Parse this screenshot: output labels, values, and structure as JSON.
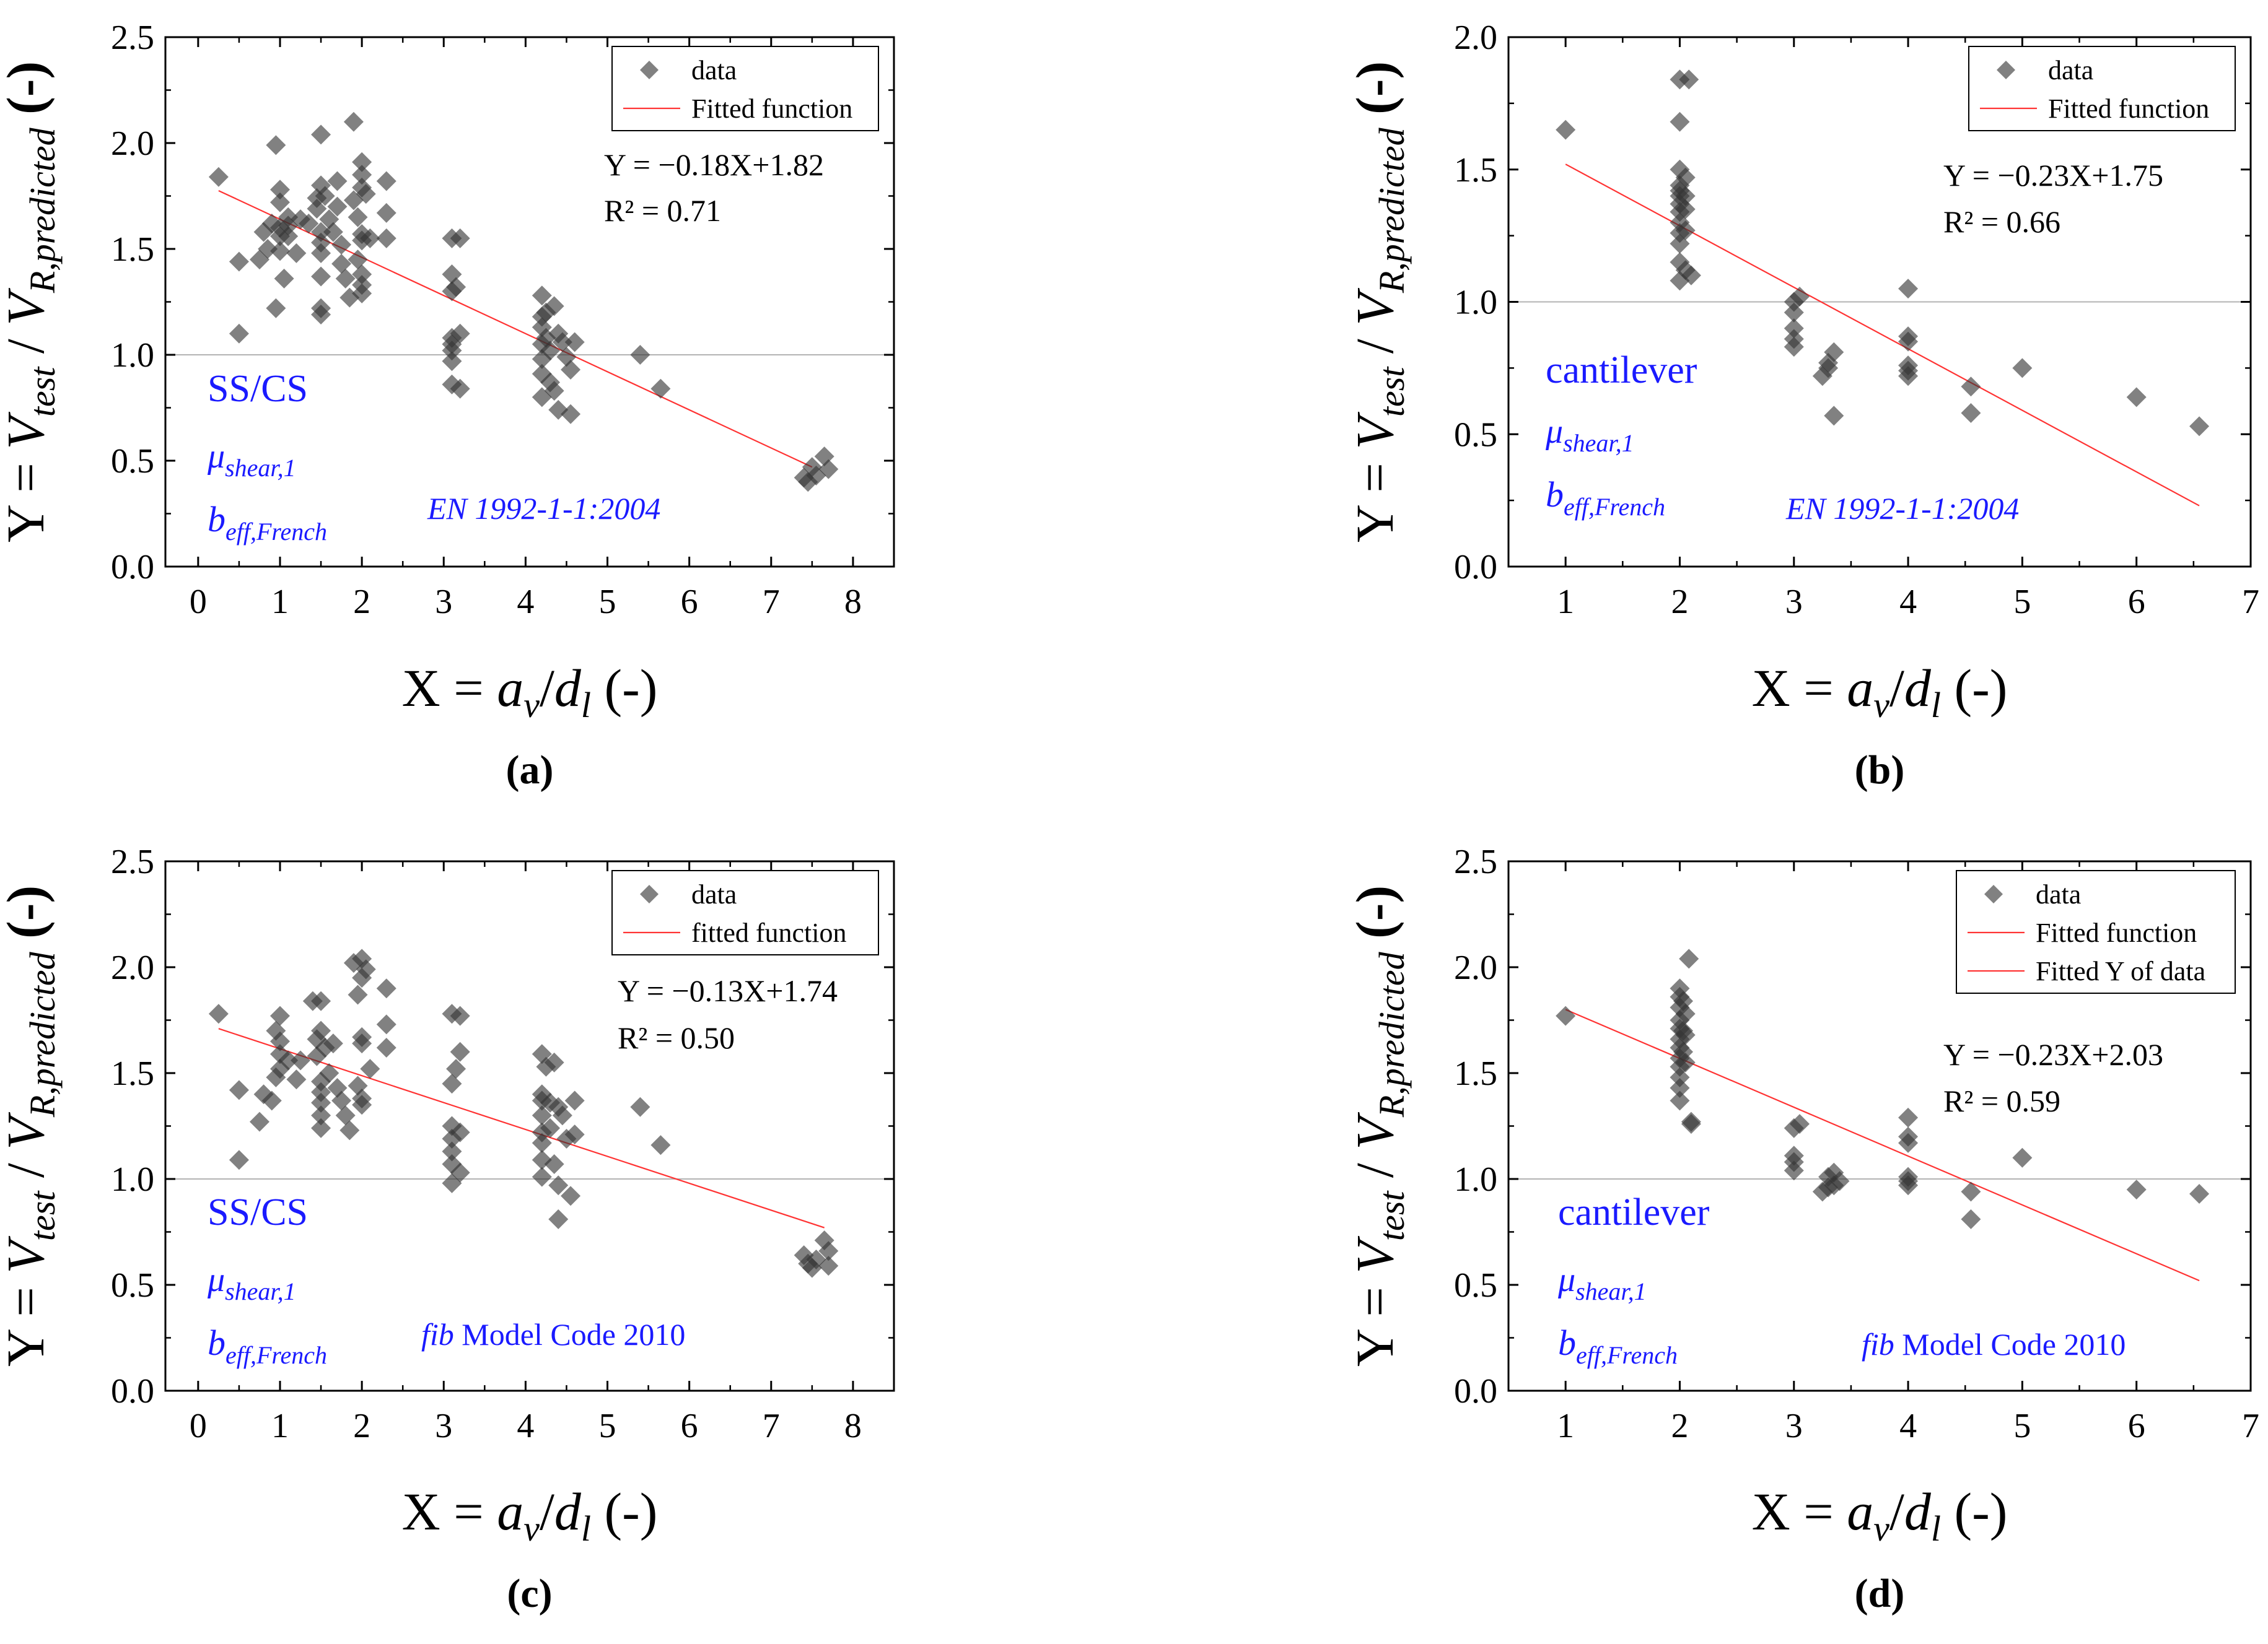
{
  "figure": {
    "colors": {
      "marker": "#333333",
      "fit_line": "#ff3333",
      "reference_line": "#b3b3b3",
      "annotation": "#1a1aff",
      "axis": "#000000"
    },
    "ylabel": {
      "prefix": "Y = ",
      "v1": "V",
      "v1_sub": "test",
      "slash": " / ",
      "v2": "V",
      "v2_sub": "R,predicted",
      "suffix": " (-)"
    },
    "xlabel": {
      "prefix": "X = ",
      "a": "a",
      "a_sub": "v",
      "slash": "/",
      "d": "d",
      "d_sub": "l",
      "suffix": " (-)"
    },
    "mu_symbol": "μ",
    "mu_sub": "shear,1",
    "b_symbol": "b",
    "b_sub": "eff,French"
  },
  "chart_data": [
    {
      "panel_label": "(a)",
      "type": "scatter",
      "xlim": [
        -0.4,
        8.5
      ],
      "ylim": [
        0,
        2.5
      ],
      "xticks": [
        "0",
        "1",
        "2",
        "3",
        "4",
        "5",
        "6",
        "7",
        "8"
      ],
      "yticks": [
        "0.0",
        "0.5",
        "1.0",
        "1.5",
        "2.0",
        "2.5"
      ],
      "legend": [
        "data",
        "Fitted function"
      ],
      "equation": "Y = −0.18X+1.82",
      "r2": "R² = 0.71",
      "group_label": "SS/CS",
      "code_label": {
        "italic": "EN 1992-1-1:2004",
        "normal": ""
      },
      "reference_y": 1.0,
      "fit": {
        "x": [
          0.25,
          7.5
        ],
        "y": [
          1.775,
          0.47
        ]
      },
      "points": [
        [
          0.25,
          1.84
        ],
        [
          0.5,
          1.1
        ],
        [
          0.5,
          1.44
        ],
        [
          0.75,
          1.45
        ],
        [
          0.8,
          1.58
        ],
        [
          0.85,
          1.5
        ],
        [
          0.9,
          1.62
        ],
        [
          0.95,
          1.99
        ],
        [
          0.95,
          1.22
        ],
        [
          1.0,
          1.78
        ],
        [
          1.0,
          1.72
        ],
        [
          1.0,
          1.6
        ],
        [
          1.0,
          1.56
        ],
        [
          1.0,
          1.49
        ],
        [
          1.05,
          1.36
        ],
        [
          1.1,
          1.65
        ],
        [
          1.1,
          1.61
        ],
        [
          1.1,
          1.56
        ],
        [
          1.2,
          1.48
        ],
        [
          1.25,
          1.64
        ],
        [
          1.35,
          1.62
        ],
        [
          1.45,
          1.74
        ],
        [
          1.45,
          1.69
        ],
        [
          1.5,
          2.04
        ],
        [
          1.5,
          1.8
        ],
        [
          1.5,
          1.58
        ],
        [
          1.5,
          1.53
        ],
        [
          1.5,
          1.48
        ],
        [
          1.5,
          1.37
        ],
        [
          1.5,
          1.22
        ],
        [
          1.5,
          1.19
        ],
        [
          1.55,
          1.75
        ],
        [
          1.6,
          1.64
        ],
        [
          1.65,
          1.58
        ],
        [
          1.7,
          1.82
        ],
        [
          1.7,
          1.7
        ],
        [
          1.75,
          1.52
        ],
        [
          1.75,
          1.43
        ],
        [
          1.8,
          1.36
        ],
        [
          1.85,
          1.27
        ],
        [
          1.9,
          2.1
        ],
        [
          1.9,
          1.73
        ],
        [
          1.95,
          1.65
        ],
        [
          1.95,
          1.45
        ],
        [
          2.0,
          1.91
        ],
        [
          2.0,
          1.85
        ],
        [
          2.0,
          1.79
        ],
        [
          2.0,
          1.57
        ],
        [
          2.0,
          1.54
        ],
        [
          2.0,
          1.38
        ],
        [
          2.0,
          1.33
        ],
        [
          2.0,
          1.29
        ],
        [
          2.05,
          1.76
        ],
        [
          2.1,
          1.55
        ],
        [
          2.3,
          1.82
        ],
        [
          2.3,
          1.67
        ],
        [
          2.3,
          1.55
        ],
        [
          3.1,
          1.55
        ],
        [
          3.1,
          1.38
        ],
        [
          3.1,
          1.3
        ],
        [
          3.1,
          1.08
        ],
        [
          3.1,
          1.05
        ],
        [
          3.1,
          1.02
        ],
        [
          3.1,
          0.97
        ],
        [
          3.1,
          0.86
        ],
        [
          3.15,
          1.32
        ],
        [
          3.2,
          1.55
        ],
        [
          3.2,
          1.1
        ],
        [
          3.2,
          0.84
        ],
        [
          4.2,
          1.28
        ],
        [
          4.2,
          1.18
        ],
        [
          4.2,
          1.13
        ],
        [
          4.2,
          1.05
        ],
        [
          4.2,
          0.98
        ],
        [
          4.2,
          0.91
        ],
        [
          4.2,
          0.8
        ],
        [
          4.25,
          1.2
        ],
        [
          4.25,
          1.08
        ],
        [
          4.3,
          1.02
        ],
        [
          4.3,
          0.87
        ],
        [
          4.35,
          1.23
        ],
        [
          4.35,
          0.83
        ],
        [
          4.4,
          1.1
        ],
        [
          4.4,
          0.74
        ],
        [
          4.45,
          1.06
        ],
        [
          4.5,
          0.99
        ],
        [
          4.55,
          0.93
        ],
        [
          4.55,
          0.72
        ],
        [
          4.6,
          1.06
        ],
        [
          5.4,
          1.0
        ],
        [
          5.65,
          0.84
        ],
        [
          7.4,
          0.42
        ],
        [
          7.45,
          0.4
        ],
        [
          7.5,
          0.47
        ],
        [
          7.55,
          0.43
        ],
        [
          7.65,
          0.52
        ],
        [
          7.7,
          0.46
        ]
      ]
    },
    {
      "panel_label": "(b)",
      "type": "scatter",
      "xlim": [
        0.5,
        7.0
      ],
      "ylim": [
        0,
        2.0
      ],
      "xticks": [
        "1",
        "2",
        "3",
        "4",
        "5",
        "6",
        "7"
      ],
      "yticks": [
        "0.0",
        "0.5",
        "1.0",
        "1.5",
        "2.0"
      ],
      "legend": [
        "data",
        "Fitted function"
      ],
      "equation": "Y = −0.23X+1.75",
      "r2": "R² = 0.66",
      "group_label": "cantilever",
      "code_label": {
        "italic": "EN 1992-1-1:2004",
        "normal": ""
      },
      "reference_y": 1.0,
      "fit": {
        "x": [
          1.0,
          6.55
        ],
        "y": [
          1.52,
          0.23
        ]
      },
      "points": [
        [
          1.0,
          1.65
        ],
        [
          2.0,
          1.84
        ],
        [
          2.0,
          1.68
        ],
        [
          2.0,
          1.5
        ],
        [
          2.0,
          1.44
        ],
        [
          2.0,
          1.42
        ],
        [
          2.0,
          1.4
        ],
        [
          2.0,
          1.37
        ],
        [
          2.0,
          1.34
        ],
        [
          2.0,
          1.3
        ],
        [
          2.0,
          1.26
        ],
        [
          2.0,
          1.22
        ],
        [
          2.0,
          1.15
        ],
        [
          2.0,
          1.08
        ],
        [
          2.05,
          1.47
        ],
        [
          2.05,
          1.4
        ],
        [
          2.05,
          1.35
        ],
        [
          2.05,
          1.27
        ],
        [
          2.05,
          1.12
        ],
        [
          2.08,
          1.84
        ],
        [
          2.1,
          1.1
        ],
        [
          3.0,
          1.0
        ],
        [
          3.0,
          0.96
        ],
        [
          3.0,
          0.9
        ],
        [
          3.0,
          0.86
        ],
        [
          3.0,
          0.83
        ],
        [
          3.05,
          1.02
        ],
        [
          3.25,
          0.72
        ],
        [
          3.3,
          0.77
        ],
        [
          3.3,
          0.75
        ],
        [
          3.35,
          0.81
        ],
        [
          3.35,
          0.57
        ],
        [
          4.0,
          1.05
        ],
        [
          4.0,
          0.87
        ],
        [
          4.0,
          0.85
        ],
        [
          4.0,
          0.76
        ],
        [
          4.0,
          0.74
        ],
        [
          4.0,
          0.72
        ],
        [
          4.55,
          0.68
        ],
        [
          4.55,
          0.58
        ],
        [
          5.0,
          0.75
        ],
        [
          6.0,
          0.64
        ],
        [
          6.55,
          0.53
        ]
      ]
    },
    {
      "panel_label": "(c)",
      "type": "scatter",
      "xlim": [
        -0.4,
        8.5
      ],
      "ylim": [
        0,
        2.5
      ],
      "xticks": [
        "0",
        "1",
        "2",
        "3",
        "4",
        "5",
        "6",
        "7",
        "8"
      ],
      "yticks": [
        "0.0",
        "0.5",
        "1.0",
        "1.5",
        "2.0",
        "2.5"
      ],
      "legend": [
        "data",
        "fitted function"
      ],
      "equation": "Y = −0.13X+1.74",
      "r2": "R² = 0.50",
      "group_label": "SS/CS",
      "code_label": {
        "italic": "fib",
        "normal": " Model Code 2010"
      },
      "reference_y": 1.0,
      "fit": {
        "x": [
          0.25,
          7.65
        ],
        "y": [
          1.71,
          0.77
        ]
      },
      "points": [
        [
          0.25,
          1.78
        ],
        [
          0.5,
          1.09
        ],
        [
          0.5,
          1.42
        ],
        [
          0.75,
          1.27
        ],
        [
          0.8,
          1.4
        ],
        [
          0.9,
          1.37
        ],
        [
          0.95,
          1.7
        ],
        [
          0.95,
          1.48
        ],
        [
          1.0,
          1.77
        ],
        [
          1.0,
          1.65
        ],
        [
          1.0,
          1.59
        ],
        [
          1.0,
          1.52
        ],
        [
          1.1,
          1.56
        ],
        [
          1.2,
          1.47
        ],
        [
          1.25,
          1.56
        ],
        [
          1.4,
          1.84
        ],
        [
          1.45,
          1.66
        ],
        [
          1.45,
          1.58
        ],
        [
          1.5,
          1.84
        ],
        [
          1.5,
          1.7
        ],
        [
          1.5,
          1.46
        ],
        [
          1.5,
          1.41
        ],
        [
          1.5,
          1.36
        ],
        [
          1.5,
          1.3
        ],
        [
          1.5,
          1.24
        ],
        [
          1.55,
          1.62
        ],
        [
          1.6,
          1.5
        ],
        [
          1.65,
          1.64
        ],
        [
          1.7,
          1.43
        ],
        [
          1.75,
          1.37
        ],
        [
          1.8,
          1.3
        ],
        [
          1.85,
          1.23
        ],
        [
          1.9,
          2.02
        ],
        [
          1.95,
          1.87
        ],
        [
          1.95,
          1.44
        ],
        [
          2.0,
          2.04
        ],
        [
          2.0,
          1.95
        ],
        [
          2.0,
          1.67
        ],
        [
          2.0,
          1.64
        ],
        [
          2.0,
          1.38
        ],
        [
          2.0,
          1.35
        ],
        [
          2.05,
          1.99
        ],
        [
          2.1,
          1.52
        ],
        [
          2.3,
          1.9
        ],
        [
          2.3,
          1.73
        ],
        [
          2.3,
          1.62
        ],
        [
          3.1,
          1.78
        ],
        [
          3.1,
          1.45
        ],
        [
          3.1,
          1.25
        ],
        [
          3.1,
          1.19
        ],
        [
          3.1,
          1.13
        ],
        [
          3.1,
          1.07
        ],
        [
          3.1,
          0.98
        ],
        [
          3.15,
          1.52
        ],
        [
          3.2,
          1.77
        ],
        [
          3.2,
          1.6
        ],
        [
          3.2,
          1.22
        ],
        [
          3.2,
          1.03
        ],
        [
          4.2,
          1.59
        ],
        [
          4.2,
          1.4
        ],
        [
          4.2,
          1.37
        ],
        [
          4.2,
          1.3
        ],
        [
          4.2,
          1.22
        ],
        [
          4.2,
          1.17
        ],
        [
          4.2,
          1.09
        ],
        [
          4.2,
          1.01
        ],
        [
          4.25,
          1.53
        ],
        [
          4.3,
          1.36
        ],
        [
          4.3,
          1.24
        ],
        [
          4.35,
          1.55
        ],
        [
          4.35,
          1.07
        ],
        [
          4.4,
          1.34
        ],
        [
          4.4,
          0.97
        ],
        [
          4.4,
          0.81
        ],
        [
          4.45,
          1.3
        ],
        [
          4.5,
          1.19
        ],
        [
          4.55,
          0.92
        ],
        [
          4.6,
          1.37
        ],
        [
          4.6,
          1.21
        ],
        [
          5.4,
          1.34
        ],
        [
          5.65,
          1.16
        ],
        [
          7.4,
          0.64
        ],
        [
          7.45,
          0.6
        ],
        [
          7.5,
          0.58
        ],
        [
          7.55,
          0.62
        ],
        [
          7.65,
          0.71
        ],
        [
          7.7,
          0.66
        ],
        [
          7.7,
          0.59
        ]
      ]
    },
    {
      "panel_label": "(d)",
      "type": "scatter",
      "xlim": [
        0.5,
        7.0
      ],
      "ylim": [
        0,
        2.5
      ],
      "xticks": [
        "1",
        "2",
        "3",
        "4",
        "5",
        "6",
        "7"
      ],
      "yticks": [
        "0.0",
        "0.5",
        "1.0",
        "1.5",
        "2.0",
        "2.5"
      ],
      "legend": [
        "data",
        "Fitted function",
        "Fitted Y of data"
      ],
      "equation": "Y = −0.23X+2.03",
      "r2": "R² = 0.59",
      "group_label": "cantilever",
      "code_label": {
        "italic": "fib",
        "normal": " Model Code 2010"
      },
      "reference_y": 1.0,
      "fit": {
        "x": [
          1.0,
          6.55
        ],
        "y": [
          1.8,
          0.52
        ]
      },
      "points": [
        [
          1.0,
          1.77
        ],
        [
          2.0,
          1.9
        ],
        [
          2.0,
          1.86
        ],
        [
          2.0,
          1.81
        ],
        [
          2.0,
          1.75
        ],
        [
          2.0,
          1.71
        ],
        [
          2.0,
          1.66
        ],
        [
          2.0,
          1.62
        ],
        [
          2.0,
          1.57
        ],
        [
          2.0,
          1.53
        ],
        [
          2.0,
          1.48
        ],
        [
          2.0,
          1.43
        ],
        [
          2.0,
          1.37
        ],
        [
          2.03,
          1.84
        ],
        [
          2.03,
          1.7
        ],
        [
          2.03,
          1.6
        ],
        [
          2.05,
          1.78
        ],
        [
          2.05,
          1.68
        ],
        [
          2.05,
          1.55
        ],
        [
          2.08,
          2.04
        ],
        [
          2.1,
          1.26
        ],
        [
          2.1,
          1.27
        ],
        [
          3.0,
          1.24
        ],
        [
          3.0,
          1.11
        ],
        [
          3.0,
          1.08
        ],
        [
          3.0,
          1.04
        ],
        [
          3.05,
          1.26
        ],
        [
          3.25,
          0.94
        ],
        [
          3.3,
          0.96
        ],
        [
          3.3,
          1.01
        ],
        [
          3.35,
          0.97
        ],
        [
          3.35,
          1.03
        ],
        [
          3.4,
          0.99
        ],
        [
          4.0,
          1.29
        ],
        [
          4.0,
          1.2
        ],
        [
          4.0,
          1.17
        ],
        [
          4.0,
          1.01
        ],
        [
          4.0,
          0.99
        ],
        [
          4.0,
          0.97
        ],
        [
          4.55,
          0.94
        ],
        [
          4.55,
          0.81
        ],
        [
          5.0,
          1.1
        ],
        [
          6.0,
          0.95
        ],
        [
          6.55,
          0.93
        ]
      ]
    }
  ]
}
